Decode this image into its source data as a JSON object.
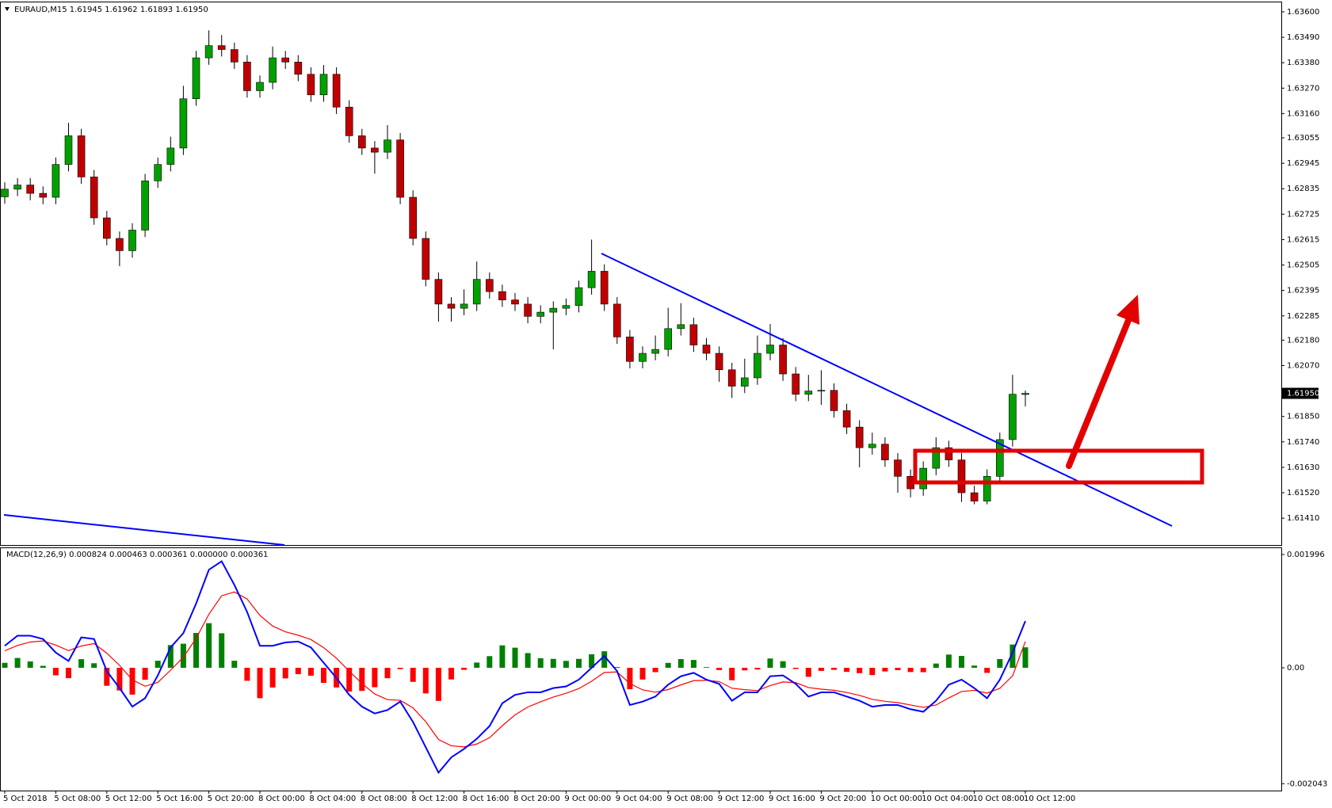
{
  "chart_data": [
    {
      "type": "candlestick",
      "title": "EURAUD,M15  1.61945 1.61962 1.61893 1.61950",
      "last_price_label": "1.61950",
      "bull_color": "#00a000",
      "bear_color": "#c00000",
      "wick_color": "#000000",
      "categories": [
        "5 Oct 2018",
        null,
        null,
        null,
        "5 Oct 08:00",
        null,
        null,
        null,
        "5 Oct 12:00",
        null,
        null,
        null,
        "5 Oct 16:00",
        null,
        null,
        null,
        "5 Oct 20:00",
        null,
        null,
        null,
        "8 Oct 00:00",
        null,
        null,
        null,
        "8 Oct 04:00",
        null,
        null,
        null,
        "8 Oct 08:00",
        null,
        null,
        null,
        "8 Oct 12:00",
        null,
        null,
        null,
        "8 Oct 16:00",
        null,
        null,
        null,
        "8 Oct 20:00",
        null,
        null,
        null,
        "9 Oct 00:00",
        null,
        null,
        null,
        "9 Oct 04:00",
        null,
        null,
        null,
        "9 Oct 08:00",
        null,
        null,
        null,
        "9 Oct 12:00",
        null,
        null,
        null,
        "9 Oct 16:00",
        null,
        null,
        null,
        "9 Oct 20:00",
        null,
        null,
        null,
        "10 Oct 00:00",
        null,
        null,
        null,
        "10 Oct 04:00",
        null,
        null,
        null,
        "10 Oct 08:00",
        null,
        null,
        null,
        "10 Oct 12:00"
      ],
      "open": [
        1.628,
        1.62833,
        1.62851,
        1.62815,
        1.62798,
        1.6294,
        1.63064,
        1.62886,
        1.62709,
        1.6262,
        1.62567,
        1.62656,
        1.62869,
        1.6294,
        1.63011,
        1.63224,
        1.63401,
        1.63454,
        1.63437,
        1.63383,
        1.63259,
        1.63295,
        1.63401,
        1.63383,
        1.6333,
        1.63241,
        1.6333,
        1.63188,
        1.63064,
        1.63011,
        1.62993,
        1.63046,
        1.62798,
        1.6262,
        1.62443,
        1.62336,
        1.62318,
        1.62336,
        1.62443,
        1.6239,
        1.62354,
        1.62336,
        1.62283,
        1.62301,
        1.62318,
        1.6233,
        1.62407,
        1.62478,
        1.62336,
        1.62194,
        1.62088,
        1.62123,
        1.6214,
        1.6223,
        1.62247,
        1.62159,
        1.62123,
        1.62052,
        1.61981,
        1.62017,
        1.62123,
        1.62159,
        1.62034,
        1.61946,
        1.6196,
        1.61963,
        1.61875,
        1.61804,
        1.61715,
        1.6173,
        1.61662,
        1.61591,
        1.61537,
        1.61626,
        1.61715,
        1.61662,
        1.6152,
        1.61484,
        1.61591,
        1.6175,
        1.61945
      ],
      "high": [
        1.62863,
        1.62881,
        1.62881,
        1.62845,
        1.6297,
        1.6312,
        1.63094,
        1.62916,
        1.62739,
        1.6265,
        1.62686,
        1.62899,
        1.6297,
        1.6306,
        1.6328,
        1.63431,
        1.6352,
        1.635,
        1.63467,
        1.63413,
        1.63325,
        1.6345,
        1.63431,
        1.63413,
        1.6336,
        1.6337,
        1.6336,
        1.63218,
        1.63094,
        1.63041,
        1.6311,
        1.63076,
        1.62828,
        1.6265,
        1.62473,
        1.62366,
        1.624,
        1.6252,
        1.62473,
        1.6242,
        1.62384,
        1.62366,
        1.62331,
        1.62348,
        1.6236,
        1.62437,
        1.62615,
        1.62508,
        1.62366,
        1.62224,
        1.62153,
        1.622,
        1.6232,
        1.6234,
        1.62277,
        1.62189,
        1.62153,
        1.62082,
        1.621,
        1.622,
        1.6225,
        1.62189,
        1.62064,
        1.6203,
        1.6205,
        1.61993,
        1.61905,
        1.61834,
        1.6178,
        1.6176,
        1.61692,
        1.61621,
        1.61656,
        1.6176,
        1.61745,
        1.61692,
        1.6155,
        1.61621,
        1.6178,
        1.6203,
        1.61962
      ],
      "low": [
        1.6277,
        1.62803,
        1.62785,
        1.62768,
        1.62768,
        1.6291,
        1.62856,
        1.62679,
        1.6259,
        1.625,
        1.62537,
        1.62626,
        1.62839,
        1.6291,
        1.62981,
        1.63194,
        1.63371,
        1.63407,
        1.63353,
        1.63229,
        1.63229,
        1.63265,
        1.63353,
        1.633,
        1.63211,
        1.63211,
        1.63158,
        1.63034,
        1.62981,
        1.629,
        1.62963,
        1.62768,
        1.6259,
        1.62413,
        1.6226,
        1.6226,
        1.62288,
        1.62306,
        1.6236,
        1.62324,
        1.62306,
        1.62253,
        1.62253,
        1.6214,
        1.62288,
        1.623,
        1.62377,
        1.62306,
        1.62164,
        1.62058,
        1.62058,
        1.62093,
        1.6211,
        1.622,
        1.62129,
        1.62093,
        1.62,
        1.6193,
        1.61951,
        1.61987,
        1.62093,
        1.62004,
        1.61916,
        1.61916,
        1.619,
        1.61845,
        1.61774,
        1.6163,
        1.61685,
        1.61632,
        1.6152,
        1.615,
        1.61507,
        1.61596,
        1.61632,
        1.6148,
        1.6147,
        1.6147,
        1.61561,
        1.6172,
        1.61893
      ],
      "close": [
        1.62833,
        1.62851,
        1.62815,
        1.62798,
        1.6294,
        1.63064,
        1.62886,
        1.62709,
        1.6262,
        1.62567,
        1.62656,
        1.62869,
        1.6294,
        1.63011,
        1.63224,
        1.63401,
        1.63454,
        1.63437,
        1.63383,
        1.63259,
        1.63295,
        1.63401,
        1.63383,
        1.6333,
        1.63241,
        1.6333,
        1.63188,
        1.63064,
        1.63011,
        1.62993,
        1.63046,
        1.62798,
        1.6262,
        1.62443,
        1.62336,
        1.62318,
        1.62336,
        1.62443,
        1.6239,
        1.62354,
        1.62336,
        1.62283,
        1.62301,
        1.62318,
        1.6233,
        1.62407,
        1.62478,
        1.62336,
        1.62194,
        1.62088,
        1.62123,
        1.6214,
        1.6223,
        1.62247,
        1.62159,
        1.62123,
        1.62052,
        1.61981,
        1.62017,
        1.62123,
        1.62159,
        1.62034,
        1.61946,
        1.6196,
        1.61963,
        1.61875,
        1.61804,
        1.61715,
        1.6173,
        1.61662,
        1.61591,
        1.61537,
        1.61626,
        1.61715,
        1.61662,
        1.6152,
        1.61484,
        1.61591,
        1.6175,
        1.61946,
        1.6195
      ],
      "ylim": [
        1.61294,
        1.63641
      ],
      "yticks": [
        {
          "value": 1.636,
          "label": "1.63600"
        },
        {
          "value": 1.6349,
          "label": "1.63490"
        },
        {
          "value": 1.6338,
          "label": "1.63380"
        },
        {
          "value": 1.6327,
          "label": "1.63270"
        },
        {
          "value": 1.6316,
          "label": "1.63160"
        },
        {
          "value": 1.63055,
          "label": "1.63055"
        },
        {
          "value": 1.62945,
          "label": "1.62945"
        },
        {
          "value": 1.62835,
          "label": "1.62835"
        },
        {
          "value": 1.62725,
          "label": "1.62725"
        },
        {
          "value": 1.62615,
          "label": "1.62615"
        },
        {
          "value": 1.62505,
          "label": "1.62505"
        },
        {
          "value": 1.62395,
          "label": "1.62395"
        },
        {
          "value": 1.62285,
          "label": "1.62285"
        },
        {
          "value": 1.6218,
          "label": "1.62180"
        },
        {
          "value": 1.6207,
          "label": "1.62070"
        },
        {
          "value": 1.6185,
          "label": "1.61850"
        },
        {
          "value": 1.6174,
          "label": "1.61740"
        },
        {
          "value": 1.6163,
          "label": "1.61630"
        },
        {
          "value": 1.6152,
          "label": "1.61520"
        },
        {
          "value": 1.6141,
          "label": "1.61410"
        }
      ]
    },
    {
      "type": "macd",
      "title": "MACD(12,26,9) 0.000824 0.000463 0.000361 0.000000 0.000361",
      "hist_up_color": "#008000",
      "hist_down_color": "#ff0000",
      "macd_color": "#0000ff",
      "signal_color": "#ff0000",
      "histogram": [
        8.7e-05,
        0.000173,
        0.000112,
        3.4e-05,
        -0.000133,
        -0.000183,
        0.000152,
        8e-05,
        -0.000317,
        -0.0004,
        -0.000473,
        -0.000211,
        0.000124,
        0.0004,
        0.000424,
        0.000614,
        0.000786,
        0.000608,
        0.000124,
        -0.000229,
        -0.000536,
        -0.000348,
        -0.000187,
        -0.000112,
        -0.00014,
        -0.000266,
        -0.000347,
        -0.000419,
        -0.000408,
        -0.000343,
        -0.000184,
        -2.3e-05,
        -0.000248,
        -0.000452,
        -0.000584,
        -0.000205,
        -3.6e-05,
        9.2e-05,
        0.000205,
        0.000395,
        0.000354,
        0.000259,
        0.000168,
        0.000157,
        0.000122,
        0.000157,
        0.000238,
        0.000291,
        1.4e-05,
        -0.000378,
        -0.000207,
        -7.7e-05,
        8.6e-05,
        0.000153,
        0.000138,
        1.2e-05,
        -4e-05,
        -0.00022,
        -4.6e-05,
        -3e-05,
        0.000164,
        0.000116,
        -2.1e-05,
        -0.000159,
        -5.5e-05,
        -3.6e-05,
        -7.2e-05,
        -9.5e-05,
        -0.000129,
        -6.5e-05,
        -4.2e-05,
        -7.5e-05,
        -7.8e-05,
        7.5e-05,
        0.000233,
        0.000209,
        3.9e-05,
        -9e-05,
        0.000154,
        0.00041,
        0.000361
      ],
      "macd": [
        0.000387,
        0.000566,
        0.000566,
        0.000507,
        0.000268,
        0.000119,
        0.000536,
        0.000507,
        -6e-05,
        -0.000358,
        -0.000685,
        -0.000536,
        -0.000134,
        0.000358,
        0.000611,
        0.001132,
        0.001728,
        0.001877,
        0.00146,
        0.000983,
        0.000387,
        0.000387,
        0.000447,
        0.000462,
        0.000358,
        8.9e-05,
        -0.000179,
        -0.000477,
        -0.000685,
        -0.000805,
        -0.000745,
        -0.000596,
        -0.000954,
        -0.001401,
        -0.001848,
        -0.001579,
        -0.00143,
        -0.001252,
        -0.001028,
        -0.000626,
        -0.000477,
        -0.000432,
        -0.000432,
        -0.000358,
        -0.000328,
        -0.000209,
        0,
        0.000209,
        -6e-05,
        -0.000656,
        -0.000596,
        -0.000507,
        -0.000298,
        -0.000149,
        -8.9e-05,
        -0.000209,
        -0.000283,
        -0.000581,
        -0.000432,
        -0.000432,
        -0.000149,
        -0.000134,
        -0.000283,
        -0.000507,
        -0.000432,
        -0.000432,
        -0.000507,
        -0.000581,
        -0.000685,
        -0.000656,
        -0.000656,
        -0.00073,
        -0.000775,
        -0.000581,
        -0.000298,
        -0.000209,
        -0.000358,
        -0.000536,
        -0.000209,
        0.000268,
        0.000824
      ],
      "signal": [
        0.0003,
        0.000393,
        0.000454,
        0.000473,
        0.000401,
        0.000302,
        0.000384,
        0.000427,
        0.000257,
        4.2e-05,
        -0.000212,
        -0.000325,
        -0.000258,
        -4.2e-05,
        0.000187,
        0.000518,
        0.000942,
        0.001269,
        0.001336,
        0.001212,
        0.000923,
        0.000735,
        0.000634,
        0.000574,
        0.000498,
        0.000355,
        0.000168,
        -5.8e-05,
        -0.000277,
        -0.000462,
        -0.000561,
        -0.000573,
        -0.000706,
        -0.000949,
        -0.001264,
        -0.001374,
        -0.001394,
        -0.001344,
        -0.001233,
        -0.001021,
        -0.000831,
        -0.000691,
        -0.0006,
        -0.000515,
        -0.00045,
        -0.000366,
        -0.000238,
        -8.2e-05,
        -7.4e-05,
        -0.000278,
        -0.000389,
        -0.00043,
        -0.000384,
        -0.000302,
        -0.000227,
        -0.000221,
        -0.000243,
        -0.000361,
        -0.000386,
        -0.000402,
        -0.000313,
        -0.00025,
        -0.000262,
        -0.000348,
        -0.000377,
        -0.000396,
        -0.000435,
        -0.000486,
        -0.000556,
        -0.000591,
        -0.000614,
        -0.000655,
        -0.000697,
        -0.000656,
        -0.000531,
        -0.000418,
        -0.000397,
        -0.000446,
        -0.000363,
        -0.000142,
        0.000463
      ],
      "ylim": [
        -0.002164,
        0.002108
      ],
      "yticks": [
        0.001996,
        {
          "value": 0,
          "label": "0.00"
        },
        -0.002043
      ]
    }
  ]
}
